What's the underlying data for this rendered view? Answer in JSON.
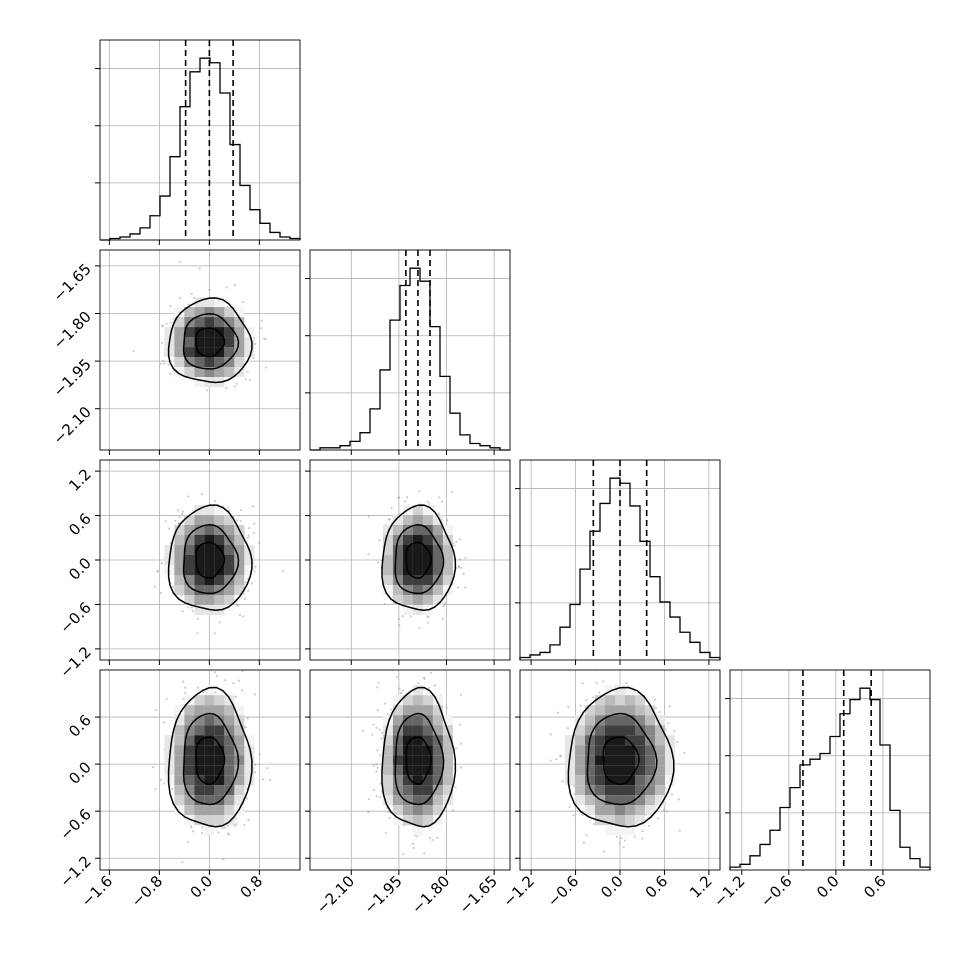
{
  "chart_data": {
    "type": "corner",
    "grid": true,
    "histogram_style": "step",
    "quantile_lines": "dashed",
    "contour_levels": 3,
    "colors": {
      "line": "#000000",
      "grid": "#b0b0b0",
      "points": "#9a9a9a",
      "background": "#ffffff"
    },
    "parameters": [
      {
        "range": [
          -1.75,
          1.45
        ],
        "ticks": [
          -1.6,
          -0.8,
          0.0,
          0.8
        ],
        "tick_labels": [
          "−1.6",
          "−0.8",
          "0.0",
          "0.8"
        ],
        "quantiles": [
          -0.38,
          0.0,
          0.38
        ]
      },
      {
        "range": [
          -2.23,
          -1.6
        ],
        "ticks": [
          -2.1,
          -1.95,
          -1.8,
          -1.65
        ],
        "tick_labels": [
          "−2.10",
          "−1.95",
          "−1.80",
          "−1.65"
        ],
        "quantiles": [
          -1.928,
          -1.89,
          -1.852
        ]
      },
      {
        "range": [
          -1.35,
          1.35
        ],
        "ticks": [
          -1.2,
          -0.6,
          0.0,
          0.6,
          1.2
        ],
        "tick_labels": [
          "−1.2",
          "−0.6",
          "0.0",
          "0.6",
          "1.2"
        ],
        "quantiles": [
          -0.36,
          0.0,
          0.36
        ]
      },
      {
        "range": [
          -1.35,
          1.2
        ],
        "ticks": [
          -1.2,
          -0.6,
          0.0,
          0.6
        ],
        "tick_labels": [
          "−1.2",
          "−0.6",
          "0.0",
          "0.6"
        ],
        "quantiles": [
          -0.42,
          0.1,
          0.45
        ]
      }
    ],
    "histograms": [
      {
        "bins": [
          -1.75,
          1.45
        ],
        "counts": [
          0,
          1,
          2,
          4,
          8,
          16,
          29,
          55,
          88,
          111,
          120,
          117,
          97,
          63,
          36,
          20,
          11,
          5,
          2,
          1
        ]
      },
      {
        "bins": [
          -2.23,
          -1.6
        ],
        "counts": [
          0,
          1,
          1,
          2,
          4,
          8,
          19,
          37,
          60,
          76,
          84,
          78,
          57,
          34,
          17,
          7,
          3,
          2,
          1,
          0
        ]
      },
      {
        "bins": [
          -1.35,
          1.35
        ],
        "counts": [
          1,
          2,
          3,
          6,
          13,
          22,
          36,
          51,
          62,
          72,
          70,
          61,
          47,
          33,
          23,
          17,
          11,
          7,
          3,
          1
        ]
      },
      {
        "bins": [
          -1.35,
          1.2
        ],
        "counts": [
          1,
          2,
          5,
          9,
          14,
          22,
          29,
          37,
          39,
          41,
          47,
          55,
          60,
          64,
          60,
          44,
          21,
          8,
          4,
          1
        ]
      }
    ],
    "scatter_pairs": [
      {
        "x_param": 0,
        "y_param": 1,
        "x_center": 0.0,
        "y_center": -1.89,
        "x_sd": 0.3,
        "y_sd": 0.06
      },
      {
        "x_param": 0,
        "y_param": 2,
        "x_center": 0.0,
        "y_center": 0.0,
        "x_sd": 0.3,
        "y_sd": 0.32
      },
      {
        "x_param": 1,
        "y_param": 2,
        "x_center": -1.89,
        "y_center": 0.0,
        "x_sd": 0.052,
        "y_sd": 0.32
      },
      {
        "x_param": 0,
        "y_param": 3,
        "x_center": 0.0,
        "y_center": 0.05,
        "x_sd": 0.3,
        "y_sd": 0.4
      },
      {
        "x_param": 1,
        "y_param": 3,
        "x_center": -1.89,
        "y_center": 0.05,
        "x_sd": 0.052,
        "y_sd": 0.4
      },
      {
        "x_param": 2,
        "y_param": 3,
        "x_center": 0.0,
        "y_center": 0.05,
        "x_sd": 0.32,
        "y_sd": 0.4
      }
    ]
  }
}
